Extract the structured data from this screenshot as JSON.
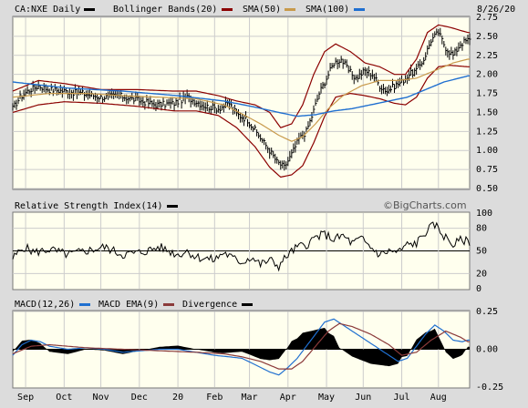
{
  "header": {
    "ticker_label": "CA:NXE Daily",
    "legend": [
      {
        "label": "Bollinger Bands(20)",
        "color": "#8b0000"
      },
      {
        "label": "SMA(50)",
        "color": "#c89a4c"
      },
      {
        "label": "SMA(100)",
        "color": "#1f6fd0"
      }
    ],
    "date": "8/26/20",
    "watermark": "©BigCharts.com"
  },
  "colors": {
    "panel_bg": "#ffffee",
    "frame": "#777777",
    "grid": "#cccccc",
    "price": "#000000",
    "bollinger": "#8b0000",
    "sma50": "#c89a4c",
    "sma100": "#1f6fd0",
    "macd": "#1f6fd0",
    "ema": "#8b3a3a",
    "divergence": "#000000"
  },
  "chart_data": [
    {
      "type": "line",
      "title": "CA:NXE Daily",
      "x_labels": [
        "Sep",
        "Oct",
        "Nov",
        "Dec",
        "20",
        "Feb",
        "Mar",
        "Apr",
        "May",
        "Jun",
        "Jul",
        "Aug"
      ],
      "ylim": [
        0.5,
        2.75
      ],
      "y_ticks": [
        "2.75",
        "2.50",
        "2.25",
        "2.00",
        "1.75",
        "1.50",
        "1.25",
        "1.00",
        "0.75",
        "0.50"
      ],
      "price_anchors": [
        [
          0,
          1.55
        ],
        [
          4,
          1.7
        ],
        [
          8,
          1.78
        ],
        [
          14,
          1.85
        ],
        [
          20,
          1.8
        ],
        [
          28,
          1.78
        ],
        [
          38,
          1.75
        ],
        [
          48,
          1.7
        ],
        [
          58,
          1.72
        ],
        [
          68,
          1.66
        ],
        [
          78,
          1.6
        ],
        [
          88,
          1.62
        ],
        [
          95,
          1.7
        ],
        [
          105,
          1.58
        ],
        [
          112,
          1.55
        ],
        [
          118,
          1.62
        ],
        [
          122,
          1.48
        ],
        [
          128,
          1.4
        ],
        [
          134,
          1.2
        ],
        [
          140,
          1.0
        ],
        [
          144,
          0.85
        ],
        [
          148,
          0.78
        ],
        [
          152,
          0.95
        ],
        [
          156,
          1.15
        ],
        [
          160,
          1.25
        ],
        [
          163,
          1.45
        ],
        [
          167,
          1.75
        ],
        [
          171,
          1.95
        ],
        [
          175,
          2.15
        ],
        [
          179,
          2.2
        ],
        [
          183,
          2.05
        ],
        [
          187,
          1.95
        ],
        [
          192,
          2.05
        ],
        [
          196,
          2.0
        ],
        [
          200,
          1.85
        ],
        [
          204,
          1.78
        ],
        [
          208,
          1.85
        ],
        [
          212,
          1.9
        ],
        [
          216,
          2.0
        ],
        [
          220,
          2.05
        ],
        [
          224,
          2.2
        ],
        [
          228,
          2.45
        ],
        [
          232,
          2.55
        ],
        [
          236,
          2.35
        ],
        [
          240,
          2.25
        ],
        [
          244,
          2.4
        ],
        [
          248,
          2.45
        ]
      ],
      "series": [
        {
          "name": "Bollinger Bands(20)",
          "upper_anchors": [
            [
              0,
              1.78
            ],
            [
              14,
              1.92
            ],
            [
              28,
              1.88
            ],
            [
              48,
              1.8
            ],
            [
              68,
              1.8
            ],
            [
              88,
              1.78
            ],
            [
              100,
              1.78
            ],
            [
              112,
              1.72
            ],
            [
              122,
              1.65
            ],
            [
              132,
              1.6
            ],
            [
              140,
              1.5
            ],
            [
              146,
              1.3
            ],
            [
              152,
              1.35
            ],
            [
              158,
              1.6
            ],
            [
              164,
              2.0
            ],
            [
              170,
              2.3
            ],
            [
              176,
              2.4
            ],
            [
              184,
              2.3
            ],
            [
              192,
              2.15
            ],
            [
              200,
              2.1
            ],
            [
              208,
              2.0
            ],
            [
              214,
              2.0
            ],
            [
              220,
              2.2
            ],
            [
              226,
              2.55
            ],
            [
              232,
              2.65
            ],
            [
              238,
              2.62
            ],
            [
              248,
              2.55
            ]
          ],
          "lower_anchors": [
            [
              0,
              1.5
            ],
            [
              14,
              1.6
            ],
            [
              28,
              1.64
            ],
            [
              48,
              1.62
            ],
            [
              68,
              1.58
            ],
            [
              88,
              1.52
            ],
            [
              100,
              1.52
            ],
            [
              112,
              1.46
            ],
            [
              122,
              1.3
            ],
            [
              132,
              1.05
            ],
            [
              140,
              0.78
            ],
            [
              146,
              0.65
            ],
            [
              152,
              0.68
            ],
            [
              158,
              0.8
            ],
            [
              164,
              1.1
            ],
            [
              170,
              1.45
            ],
            [
              176,
              1.7
            ],
            [
              184,
              1.75
            ],
            [
              192,
              1.72
            ],
            [
              200,
              1.68
            ],
            [
              208,
              1.62
            ],
            [
              214,
              1.6
            ],
            [
              220,
              1.7
            ],
            [
              226,
              1.95
            ],
            [
              232,
              2.1
            ],
            [
              238,
              2.12
            ],
            [
              248,
              2.1
            ]
          ]
        },
        {
          "name": "SMA(50)",
          "anchors": [
            [
              0,
              1.7
            ],
            [
              20,
              1.75
            ],
            [
              40,
              1.75
            ],
            [
              60,
              1.72
            ],
            [
              80,
              1.7
            ],
            [
              100,
              1.68
            ],
            [
              115,
              1.6
            ],
            [
              125,
              1.48
            ],
            [
              135,
              1.35
            ],
            [
              145,
              1.2
            ],
            [
              152,
              1.12
            ],
            [
              158,
              1.18
            ],
            [
              165,
              1.35
            ],
            [
              172,
              1.55
            ],
            [
              180,
              1.72
            ],
            [
              190,
              1.85
            ],
            [
              200,
              1.92
            ],
            [
              210,
              1.92
            ],
            [
              220,
              1.95
            ],
            [
              230,
              2.05
            ],
            [
              240,
              2.15
            ],
            [
              248,
              2.2
            ]
          ]
        },
        {
          "name": "SMA(100)",
          "anchors": [
            [
              0,
              1.9
            ],
            [
              30,
              1.82
            ],
            [
              60,
              1.78
            ],
            [
              90,
              1.72
            ],
            [
              115,
              1.65
            ],
            [
              130,
              1.58
            ],
            [
              145,
              1.5
            ],
            [
              155,
              1.45
            ],
            [
              165,
              1.47
            ],
            [
              175,
              1.52
            ],
            [
              185,
              1.55
            ],
            [
              195,
              1.6
            ],
            [
              205,
              1.65
            ],
            [
              215,
              1.7
            ],
            [
              225,
              1.8
            ],
            [
              235,
              1.9
            ],
            [
              248,
              1.98
            ]
          ]
        }
      ]
    },
    {
      "type": "line",
      "title": "Relative Strength Index(14)",
      "ylim": [
        0,
        100
      ],
      "y_ticks": [
        "100",
        "80",
        "50",
        "20",
        "0"
      ],
      "series": [
        {
          "name": "Relative Strength Index(14)",
          "anchors": [
            [
              0,
              40
            ],
            [
              6,
              55
            ],
            [
              12,
              48
            ],
            [
              20,
              52
            ],
            [
              30,
              45
            ],
            [
              40,
              50
            ],
            [
              50,
              55
            ],
            [
              60,
              45
            ],
            [
              70,
              48
            ],
            [
              80,
              55
            ],
            [
              90,
              45
            ],
            [
              95,
              50
            ],
            [
              100,
              42
            ],
            [
              110,
              38
            ],
            [
              115,
              48
            ],
            [
              120,
              40
            ],
            [
              125,
              35
            ],
            [
              130,
              42
            ],
            [
              135,
              32
            ],
            [
              140,
              38
            ],
            [
              145,
              30
            ],
            [
              150,
              45
            ],
            [
              155,
              55
            ],
            [
              160,
              58
            ],
            [
              165,
              68
            ],
            [
              170,
              72
            ],
            [
              175,
              65
            ],
            [
              180,
              70
            ],
            [
              185,
              60
            ],
            [
              190,
              66
            ],
            [
              195,
              55
            ],
            [
              200,
              45
            ],
            [
              205,
              50
            ],
            [
              210,
              48
            ],
            [
              215,
              58
            ],
            [
              220,
              60
            ],
            [
              225,
              75
            ],
            [
              230,
              85
            ],
            [
              235,
              70
            ],
            [
              240,
              58
            ],
            [
              245,
              65
            ],
            [
              248,
              62
            ]
          ]
        }
      ]
    },
    {
      "type": "line",
      "title": "MACD(12,26)",
      "ylim": [
        -0.25,
        0.25
      ],
      "y_ticks": [
        "0.25",
        "0.00",
        "-0.25"
      ],
      "series": [
        {
          "name": "MACD(12,26)",
          "anchors": [
            [
              0,
              -0.04
            ],
            [
              5,
              0.03
            ],
            [
              10,
              0.06
            ],
            [
              15,
              0.05
            ],
            [
              20,
              0.02
            ],
            [
              30,
              0.0
            ],
            [
              40,
              0.01
            ],
            [
              50,
              0.0
            ],
            [
              60,
              -0.02
            ],
            [
              70,
              -0.01
            ],
            [
              80,
              0.0
            ],
            [
              90,
              0.0
            ],
            [
              100,
              -0.02
            ],
            [
              110,
              -0.04
            ],
            [
              118,
              -0.05
            ],
            [
              125,
              -0.06
            ],
            [
              130,
              -0.09
            ],
            [
              135,
              -0.12
            ],
            [
              140,
              -0.15
            ],
            [
              145,
              -0.17
            ],
            [
              150,
              -0.12
            ],
            [
              155,
              -0.06
            ],
            [
              160,
              0.02
            ],
            [
              165,
              0.1
            ],
            [
              170,
              0.18
            ],
            [
              175,
              0.2
            ],
            [
              180,
              0.16
            ],
            [
              185,
              0.12
            ],
            [
              190,
              0.08
            ],
            [
              195,
              0.04
            ],
            [
              200,
              0.0
            ],
            [
              205,
              -0.04
            ],
            [
              210,
              -0.08
            ],
            [
              215,
              -0.06
            ],
            [
              220,
              0.02
            ],
            [
              225,
              0.1
            ],
            [
              230,
              0.16
            ],
            [
              235,
              0.12
            ],
            [
              240,
              0.06
            ],
            [
              245,
              0.05
            ],
            [
              248,
              0.06
            ]
          ]
        },
        {
          "name": "MACD EMA(9)",
          "anchors": [
            [
              0,
              -0.03
            ],
            [
              10,
              0.02
            ],
            [
              20,
              0.03
            ],
            [
              40,
              0.01
            ],
            [
              60,
              0.0
            ],
            [
              80,
              -0.01
            ],
            [
              100,
              -0.02
            ],
            [
              115,
              -0.03
            ],
            [
              125,
              -0.05
            ],
            [
              135,
              -0.08
            ],
            [
              145,
              -0.13
            ],
            [
              152,
              -0.13
            ],
            [
              158,
              -0.08
            ],
            [
              165,
              0.02
            ],
            [
              172,
              0.12
            ],
            [
              178,
              0.17
            ],
            [
              185,
              0.15
            ],
            [
              195,
              0.1
            ],
            [
              205,
              0.03
            ],
            [
              212,
              -0.04
            ],
            [
              220,
              -0.02
            ],
            [
              228,
              0.06
            ],
            [
              236,
              0.12
            ],
            [
              244,
              0.08
            ],
            [
              248,
              0.05
            ]
          ]
        },
        {
          "name": "Divergence",
          "values": "MACD(12,26) minus MACD EMA(9)"
        }
      ]
    }
  ]
}
